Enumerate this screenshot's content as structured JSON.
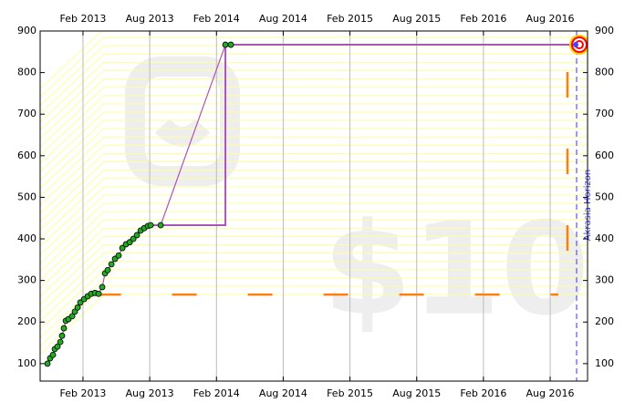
{
  "chart_data": {
    "type": "line",
    "watermark": "$10",
    "xlim": [
      2012.762,
      2016.863
    ],
    "ylim": [
      58,
      900
    ],
    "xticks": [
      {
        "value": 2013.083,
        "label": "Feb 2013"
      },
      {
        "value": 2013.583,
        "label": "Aug 2013"
      },
      {
        "value": 2014.083,
        "label": "Feb 2014"
      },
      {
        "value": 2014.583,
        "label": "Aug 2014"
      },
      {
        "value": 2015.083,
        "label": "Feb 2015"
      },
      {
        "value": 2015.583,
        "label": "Aug 2015"
      },
      {
        "value": 2016.083,
        "label": "Feb 2016"
      },
      {
        "value": 2016.583,
        "label": "Aug 2016"
      }
    ],
    "yticks": [
      100,
      200,
      300,
      400,
      500,
      600,
      700,
      800,
      900
    ],
    "grid": true,
    "series": [
      {
        "name": "datapoints",
        "color": "#22aa22",
        "line_color": "#aa55bb",
        "x": [
          2012.817,
          2012.837,
          2012.858,
          2012.872,
          2012.892,
          2012.913,
          2012.926,
          2012.94,
          2012.954,
          2012.974,
          2013.002,
          2013.022,
          2013.043,
          2013.063,
          2013.091,
          2013.118,
          2013.145,
          2013.173,
          2013.2,
          2013.227,
          2013.248,
          2013.268,
          2013.296,
          2013.323,
          2013.35,
          2013.378,
          2013.405,
          2013.433,
          2013.46,
          2013.487,
          2013.515,
          2013.542,
          2013.569,
          2013.59,
          2013.665,
          2014.15,
          2014.191
        ],
        "values": [
          100,
          113,
          121,
          135,
          141,
          152,
          167,
          185,
          203,
          207,
          214,
          225,
          235,
          247,
          255,
          262,
          268,
          270,
          268,
          284,
          317,
          325,
          339,
          352,
          360,
          378,
          387,
          392,
          400,
          409,
          420,
          426,
          431,
          433,
          433,
          867,
          867
        ]
      },
      {
        "name": "road",
        "color": "#aa55bb",
        "x": [
          2013.59,
          2014.15,
          2014.15,
          2016.774
        ],
        "values": [
          433,
          433,
          867,
          867
        ]
      }
    ],
    "lower_bound": {
      "color": "#ff7f0e",
      "x": [
        2013.183,
        2016.644
      ],
      "value": 266
    },
    "goal": {
      "x": 2016.774,
      "value": 867
    },
    "horizon": {
      "x": 2016.781,
      "label": "Akrasia Horizon",
      "color": "#3333ff"
    }
  }
}
